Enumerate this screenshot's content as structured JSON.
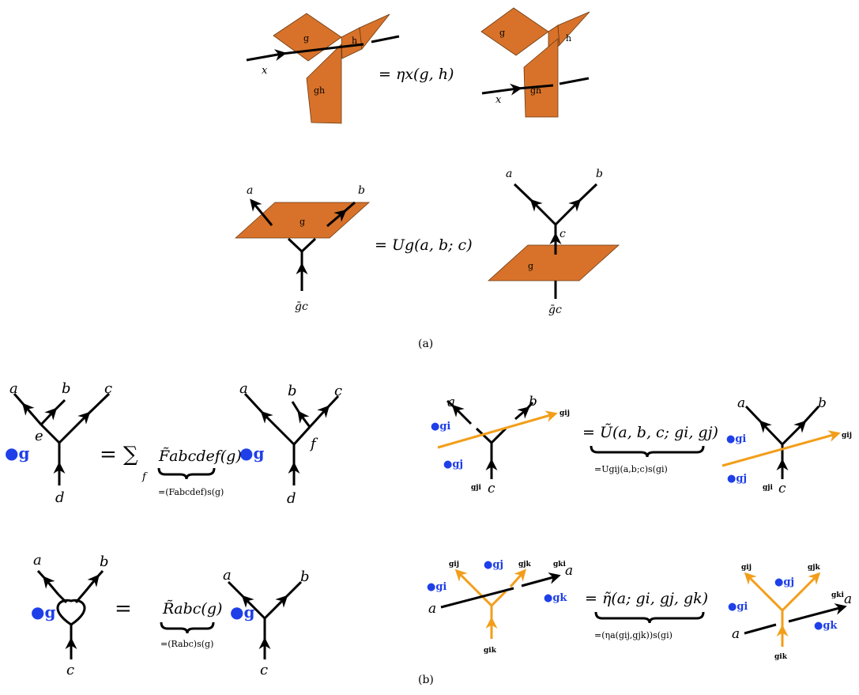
{
  "panel_a": {
    "caption": "(a)",
    "eq1": {
      "rhs": "= ηx(g, h)",
      "labels": {
        "g": "g",
        "h": "h",
        "gh": "gh",
        "x": "x"
      }
    },
    "eq2": {
      "rhs": "= Ug(a, b; c)",
      "labels": {
        "a": "a",
        "b": "b",
        "c": "c",
        "g": "g",
        "gbar_c": "ḡc"
      }
    }
  },
  "panel_b": {
    "caption": "(b)",
    "F": {
      "eq": "= ∑",
      "sum_index": "f",
      "symbol": "F̃abcdef(g)",
      "under": "=(Fabcdef)s(g)",
      "labels": {
        "a": "a",
        "b": "b",
        "c": "c",
        "d": "d",
        "e": "e",
        "f": "f",
        "g": "●g"
      }
    },
    "U": {
      "eq": "= Ũ(a, b, c; gi, gj)",
      "under": "=Ugij(a,b;c)s(gi)",
      "labels": {
        "a": "a",
        "b": "b",
        "c": "c",
        "gi": "●gi",
        "gj": "●gj",
        "gij": "gij",
        "gji": "gji"
      }
    },
    "R": {
      "eq": "=",
      "symbol": "R̃abc(g)",
      "under": "=(Rabc)s(g)",
      "labels": {
        "a": "a",
        "b": "b",
        "c": "c",
        "g": "●g"
      }
    },
    "eta": {
      "eq": "= η̃(a; gi, gj, gk)",
      "under": "=(ηa(gij,gjk))s(gi)",
      "labels": {
        "a": "a",
        "gi": "●gi",
        "gj": "●gj",
        "gk": "●gk",
        "gij": "gij",
        "gjk": "gjk",
        "gki": "gki",
        "gik": "gik"
      }
    }
  }
}
